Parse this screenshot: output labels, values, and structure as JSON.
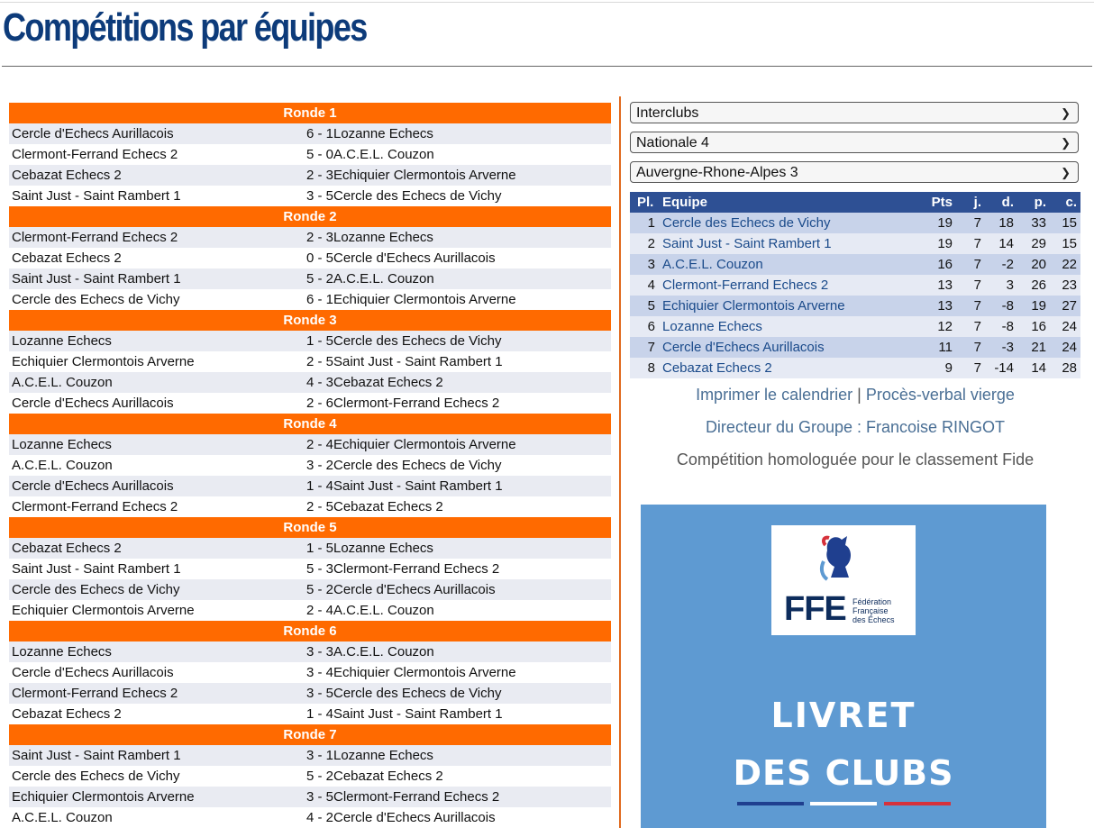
{
  "page": {
    "title": "Compétitions par équipes"
  },
  "rounds": [
    {
      "label": "Ronde 1",
      "matches": [
        {
          "home": "Cercle d'Echecs Aurillacois",
          "score": "6 -  1",
          "away": "Lozanne Echecs"
        },
        {
          "home": "Clermont-Ferrand Echecs 2",
          "score": "5 -  0",
          "away": "A.C.E.L. Couzon"
        },
        {
          "home": "Cebazat Echecs 2",
          "score": "2 -  3",
          "away": "Echiquier Clermontois Arverne"
        },
        {
          "home": "Saint Just - Saint Rambert 1",
          "score": "3 -  5",
          "away": "Cercle des Echecs de Vichy"
        }
      ]
    },
    {
      "label": "Ronde 2",
      "matches": [
        {
          "home": "Clermont-Ferrand Echecs 2",
          "score": "2 -  3",
          "away": "Lozanne Echecs"
        },
        {
          "home": "Cebazat Echecs 2",
          "score": "0 -  5",
          "away": "Cercle d'Echecs Aurillacois"
        },
        {
          "home": "Saint Just - Saint Rambert 1",
          "score": "5 -  2",
          "away": "A.C.E.L. Couzon"
        },
        {
          "home": "Cercle des Echecs de Vichy",
          "score": "6 -  1",
          "away": "Echiquier Clermontois Arverne"
        }
      ]
    },
    {
      "label": "Ronde 3",
      "matches": [
        {
          "home": "Lozanne Echecs",
          "score": "1 -  5",
          "away": "Cercle des Echecs de Vichy"
        },
        {
          "home": "Echiquier Clermontois Arverne",
          "score": "2 -  5",
          "away": "Saint Just - Saint Rambert 1"
        },
        {
          "home": "A.C.E.L. Couzon",
          "score": "4 -  3",
          "away": "Cebazat Echecs 2"
        },
        {
          "home": "Cercle d'Echecs Aurillacois",
          "score": "2 -  6",
          "away": "Clermont-Ferrand Echecs 2"
        }
      ]
    },
    {
      "label": "Ronde 4",
      "matches": [
        {
          "home": "Lozanne Echecs",
          "score": "2 -  4",
          "away": "Echiquier Clermontois Arverne"
        },
        {
          "home": "A.C.E.L. Couzon",
          "score": "3 -  2",
          "away": "Cercle des Echecs de Vichy"
        },
        {
          "home": "Cercle d'Echecs Aurillacois",
          "score": "1 -  4",
          "away": "Saint Just - Saint Rambert 1"
        },
        {
          "home": "Clermont-Ferrand Echecs 2",
          "score": "2 -  5",
          "away": "Cebazat Echecs 2"
        }
      ]
    },
    {
      "label": "Ronde 5",
      "matches": [
        {
          "home": "Cebazat Echecs 2",
          "score": "1 -  5",
          "away": "Lozanne Echecs"
        },
        {
          "home": "Saint Just - Saint Rambert 1",
          "score": "5 -  3",
          "away": "Clermont-Ferrand Echecs 2"
        },
        {
          "home": "Cercle des Echecs de Vichy",
          "score": "5 -  2",
          "away": "Cercle d'Echecs Aurillacois"
        },
        {
          "home": "Echiquier Clermontois Arverne",
          "score": "2 -  4",
          "away": "A.C.E.L. Couzon"
        }
      ]
    },
    {
      "label": "Ronde 6",
      "matches": [
        {
          "home": "Lozanne Echecs",
          "score": "3 -  3",
          "away": "A.C.E.L. Couzon"
        },
        {
          "home": "Cercle d'Echecs Aurillacois",
          "score": "3 -  4",
          "away": "Echiquier Clermontois Arverne"
        },
        {
          "home": "Clermont-Ferrand Echecs 2",
          "score": "3 -  5",
          "away": "Cercle des Echecs de Vichy"
        },
        {
          "home": "Cebazat Echecs 2",
          "score": "1 -  4",
          "away": "Saint Just - Saint Rambert 1"
        }
      ]
    },
    {
      "label": "Ronde 7",
      "matches": [
        {
          "home": "Saint Just - Saint Rambert 1",
          "score": "3 -  1",
          "away": "Lozanne Echecs"
        },
        {
          "home": "Cercle des Echecs de Vichy",
          "score": "5 -  2",
          "away": "Cebazat Echecs 2"
        },
        {
          "home": "Echiquier Clermontois Arverne",
          "score": "3 -  5",
          "away": "Clermont-Ferrand Echecs 2"
        },
        {
          "home": "A.C.E.L. Couzon",
          "score": "4 -  2",
          "away": "Cercle d'Echecs Aurillacois"
        }
      ]
    }
  ],
  "selects": {
    "competition": "Interclubs",
    "division": "Nationale 4",
    "group": "Auvergne-Rhone-Alpes 3"
  },
  "standings": {
    "headers": {
      "pl": "Pl.",
      "team": "Equipe",
      "pts": "Pts",
      "j": "j.",
      "d": "d.",
      "p": "p.",
      "c": "c."
    },
    "rows": [
      {
        "pl": "1",
        "team": "Cercle des Echecs de Vichy",
        "pts": "19",
        "j": "7",
        "d": "18",
        "p": "33",
        "c": "15"
      },
      {
        "pl": "2",
        "team": "Saint Just - Saint Rambert 1",
        "pts": "19",
        "j": "7",
        "d": "14",
        "p": "29",
        "c": "15"
      },
      {
        "pl": "3",
        "team": "A.C.E.L. Couzon",
        "pts": "16",
        "j": "7",
        "d": "-2",
        "p": "20",
        "c": "22"
      },
      {
        "pl": "4",
        "team": "Clermont-Ferrand Echecs 2",
        "pts": "13",
        "j": "7",
        "d": "3",
        "p": "26",
        "c": "23"
      },
      {
        "pl": "5",
        "team": "Echiquier Clermontois Arverne",
        "pts": "13",
        "j": "7",
        "d": "-8",
        "p": "19",
        "c": "27"
      },
      {
        "pl": "6",
        "team": "Lozanne Echecs",
        "pts": "12",
        "j": "7",
        "d": "-8",
        "p": "16",
        "c": "24"
      },
      {
        "pl": "7",
        "team": "Cercle d'Echecs Aurillacois",
        "pts": "11",
        "j": "7",
        "d": "-3",
        "p": "21",
        "c": "24"
      },
      {
        "pl": "8",
        "team": "Cebazat Echecs 2",
        "pts": "9",
        "j": "7",
        "d": "-14",
        "p": "14",
        "c": "28"
      }
    ]
  },
  "links": {
    "print_calendar": "Imprimer le calendrier",
    "separator": "|",
    "blank_report": "Procès-verbal vierge",
    "director": "Directeur du Groupe : Francoise RINGOT",
    "fide": "Compétition homologuée pour le classement Fide"
  },
  "banner": {
    "logo_text": "FFE",
    "logo_sub": [
      "Fédération",
      "Française",
      "des Échecs"
    ],
    "line1": "LIVRET",
    "line2": "DES CLUBS",
    "colors": {
      "background": "#5e9ad2",
      "blue": "#1f3f8f",
      "white": "#ffffff",
      "red": "#d6313b"
    }
  }
}
